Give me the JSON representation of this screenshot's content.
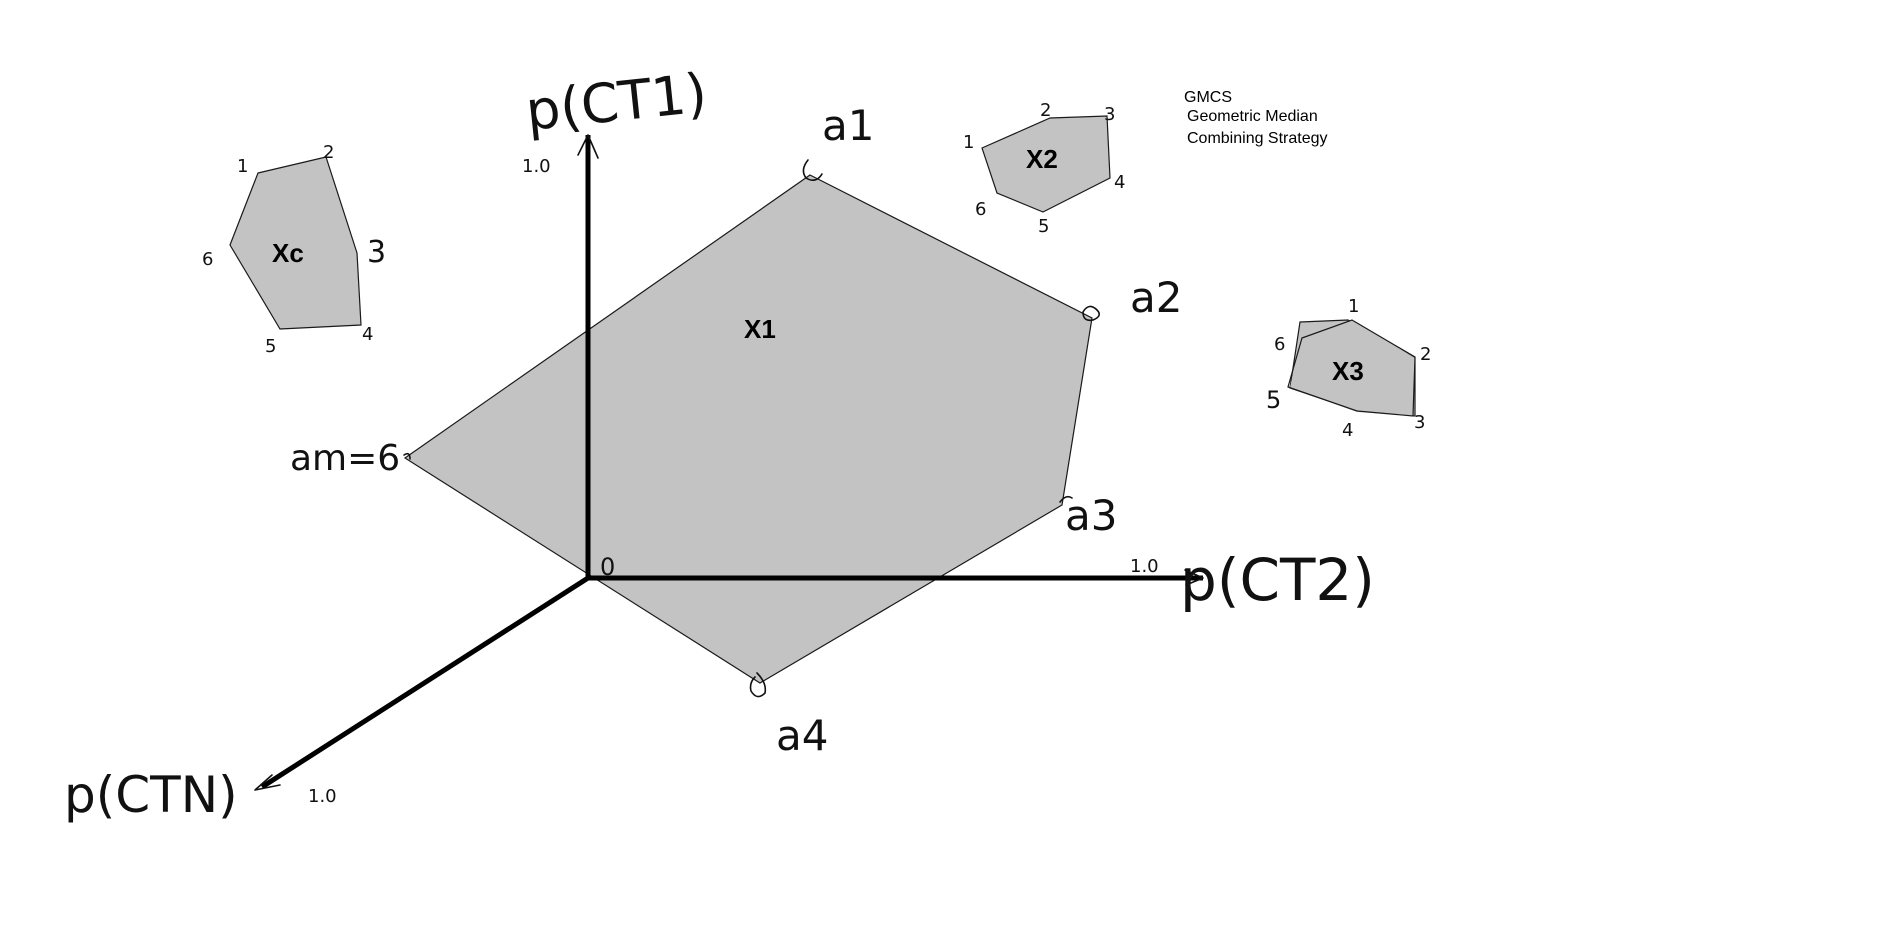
{
  "legend": {
    "abbr": "GMCS",
    "line1": "Geometric Median",
    "line2": "Combining Strategy"
  },
  "axes": {
    "ct1": "p(CT1)",
    "ct2": "p(CT2)",
    "ctn": "p(CTN)",
    "origin": "0",
    "ct1_tick": "1.0",
    "ct2_tick": "1.0",
    "ctn_tick": "1.0"
  },
  "polygons": {
    "x1": {
      "label": "X1",
      "vertices": [
        "a1",
        "a2",
        "a3",
        "a4",
        "am=6"
      ]
    },
    "xc": {
      "label": "Xc",
      "vertices": [
        "1",
        "2",
        "3",
        "4",
        "5",
        "6"
      ]
    },
    "x2": {
      "label": "X2",
      "vertices": [
        "1",
        "2",
        "3",
        "4",
        "5",
        "6"
      ]
    },
    "x3": {
      "label": "X3",
      "vertices": [
        "1",
        "2",
        "3",
        "4",
        "5",
        "6"
      ]
    }
  },
  "colors": {
    "fill": "#c3c3c3",
    "axis": "#000000"
  }
}
